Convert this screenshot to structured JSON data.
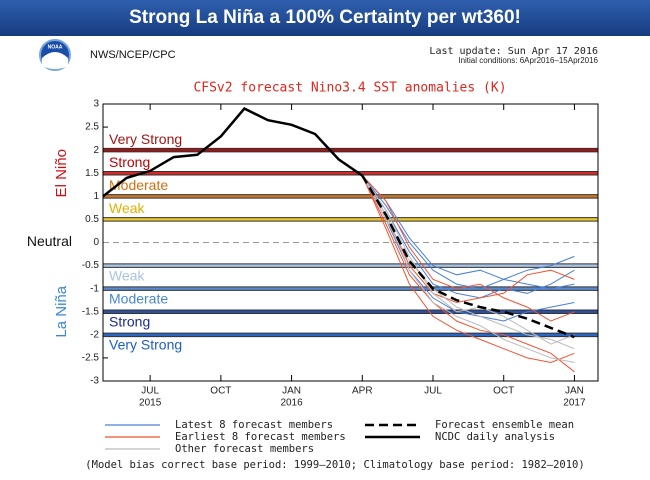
{
  "header": {
    "banner": "Strong La Niña a 100% Certainty per wt360!",
    "agency": "NWS/NCEP/CPC",
    "last_update": "Last update: Sun Apr 17 2016",
    "initial_conditions": "Initial conditions: 6Apr2016–15Apr2016"
  },
  "chart_data": {
    "type": "line",
    "title": "CFSv2 forecast Nino3.4 SST anomalies (K)",
    "note": "(Model bias correct base period: 1999–2010; Climatology base period: 1982–2010)",
    "xlim": [
      4,
      25
    ],
    "xticks": [
      {
        "value": 6,
        "label": "JUL"
      },
      {
        "value": 9,
        "label": "OCT"
      },
      {
        "value": 12,
        "label": "JAN"
      },
      {
        "value": 15,
        "label": "APR"
      },
      {
        "value": 18,
        "label": "JUL"
      },
      {
        "value": 21,
        "label": "OCT"
      },
      {
        "value": 24,
        "label": "JAN"
      }
    ],
    "year_labels": [
      {
        "value": 6,
        "label": "2015"
      },
      {
        "value": 12,
        "label": "2016"
      },
      {
        "value": 24,
        "label": "2017"
      }
    ],
    "ylim": [
      -3,
      3
    ],
    "yticks": [
      3,
      2.5,
      2,
      1.5,
      1,
      0.5,
      0,
      -0.5,
      -1,
      -1.5,
      -2,
      -2.5,
      -3
    ],
    "thresholds": [
      {
        "value": 2,
        "label": "Very Strong",
        "color": "#a31515",
        "text_color": "#a31515",
        "side": "above"
      },
      {
        "value": 1.5,
        "label": "Strong",
        "color": "#d42a2a",
        "text_color": "#c00000",
        "side": "above"
      },
      {
        "value": 1,
        "label": "Moderate",
        "color": "#c8782a",
        "text_color": "#d07010",
        "side": "above"
      },
      {
        "value": 0.5,
        "label": "Weak",
        "color": "#e8c52a",
        "text_color": "#e0b000",
        "side": "above"
      },
      {
        "value": -0.5,
        "label": "Weak",
        "color": "#a9c3e3",
        "text_color": "#a9c3e3",
        "side": "below"
      },
      {
        "value": -1,
        "label": "Moderate",
        "color": "#5a8acb",
        "text_color": "#4a86d0",
        "side": "below"
      },
      {
        "value": -1.5,
        "label": "Strong",
        "color": "#2c4f9e",
        "text_color": "#1a2a8a",
        "side": "below"
      },
      {
        "value": -2,
        "label": "Very Strong",
        "color": "#2a66c4",
        "text_color": "#1f5fbf",
        "side": "below"
      }
    ],
    "phase_labels": [
      {
        "label": "El Niño",
        "value": 1.5,
        "color": "#d01010"
      },
      {
        "label": "Neutral",
        "value": 0,
        "color": "#111111"
      },
      {
        "label": "La Niña",
        "value": -1.5,
        "color": "#3a86d8"
      }
    ],
    "forecast_x": [
      15,
      16,
      17,
      18,
      19,
      20,
      21,
      22,
      23,
      24
    ],
    "member_groups": [
      {
        "name": "Latest 8 forecast members",
        "color": "#4a80d8",
        "members": [
          [
            1.45,
            0.9,
            0.1,
            -0.5,
            -0.7,
            -0.6,
            -0.8,
            -0.6,
            -0.5,
            -0.3
          ],
          [
            1.45,
            0.7,
            -0.2,
            -0.9,
            -1.1,
            -1.2,
            -1.0,
            -1.1,
            -0.9,
            -0.6
          ],
          [
            1.45,
            0.5,
            -0.6,
            -1.2,
            -1.5,
            -1.6,
            -1.7,
            -1.5,
            -1.4,
            -1.3
          ],
          [
            1.45,
            0.8,
            0.0,
            -0.6,
            -0.9,
            -1.0,
            -0.8,
            -0.9,
            -1.0,
            -0.9
          ]
        ]
      },
      {
        "name": "Earliest 8 forecast members",
        "color": "#ee5533",
        "members": [
          [
            1.45,
            0.3,
            -0.9,
            -1.6,
            -1.9,
            -2.1,
            -2.3,
            -2.5,
            -2.6,
            -2.4
          ],
          [
            1.45,
            0.6,
            -0.5,
            -1.1,
            -1.3,
            -1.2,
            -1.1,
            -0.7,
            -0.6,
            -0.8
          ],
          [
            1.45,
            0.4,
            -0.7,
            -1.3,
            -1.7,
            -1.9,
            -2.0,
            -2.2,
            -2.4,
            -2.8
          ],
          [
            1.45,
            0.9,
            -0.1,
            -0.8,
            -1.0,
            -0.9,
            -1.2,
            -1.4,
            -1.7,
            -1.5
          ]
        ]
      },
      {
        "name": "Other forecast members",
        "color": "#bbbbbb",
        "members": [
          [
            1.45,
            0.5,
            -0.4,
            -1.0,
            -1.4,
            -1.6,
            -1.8,
            -2.0,
            -2.1,
            -2.3
          ],
          [
            1.45,
            0.7,
            -0.3,
            -1.1,
            -1.5,
            -1.4,
            -1.6,
            -1.9,
            -2.2,
            -2.0
          ],
          [
            1.45,
            0.6,
            -0.6,
            -1.3,
            -1.6,
            -1.8,
            -2.1,
            -2.3,
            -2.5,
            -2.6
          ]
        ]
      }
    ],
    "series": [
      {
        "name": "Forecast ensemble mean",
        "color": "#000000",
        "dashed": true,
        "x": [
          15,
          16,
          17,
          18,
          19,
          20,
          21,
          22,
          23,
          24
        ],
        "values": [
          1.45,
          0.6,
          -0.4,
          -1.0,
          -1.25,
          -1.4,
          -1.5,
          -1.65,
          -1.85,
          -2.05
        ]
      },
      {
        "name": "NCDC daily analysis",
        "color": "#000000",
        "dashed": false,
        "x": [
          4,
          5,
          6,
          7,
          8,
          9,
          10,
          11,
          12,
          13,
          14,
          15
        ],
        "values": [
          1.0,
          1.4,
          1.55,
          1.85,
          1.9,
          2.3,
          2.9,
          2.65,
          2.55,
          2.35,
          1.8,
          1.45
        ]
      }
    ]
  }
}
